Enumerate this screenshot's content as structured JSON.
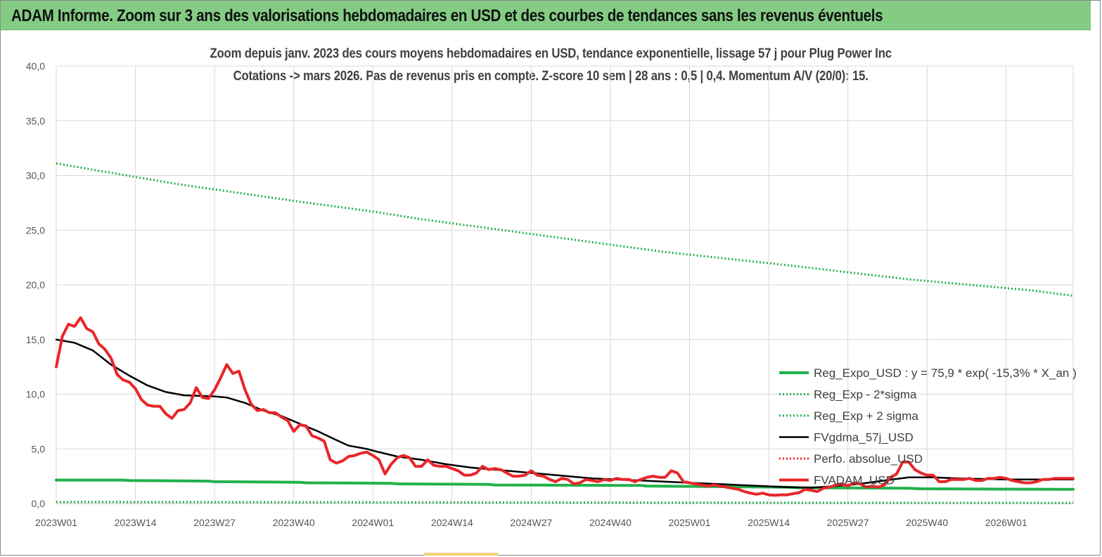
{
  "header": {
    "title": "ADAM Informe. Zoom sur 3 ans des valorisations hebdomadaires en USD et des courbes de tendances sans les revenus éventuels"
  },
  "colors": {
    "header_bg": "#84cc84",
    "reg_expo": "#22b14c",
    "reg_band": "#22b14c",
    "fvgdma": "#000000",
    "perfo": "#e8262a",
    "fvadam": "#e8262a",
    "grid": "#d9d9d9"
  },
  "chart_data": {
    "type": "line",
    "title": "Zoom depuis janv. 2023 des cours moyens hebdomadaires en USD, tendance exponentielle, lissage 57 j pour Plug Power Inc",
    "subtitle": "Cotations -> mars 2026. Pas de revenus pris en compte. Z-score 10 sem | 28 ans : 0,5 | 0,4. Momentum A/V (20/0): 15.",
    "xlabel": "",
    "ylabel": "",
    "ylim": [
      0,
      40
    ],
    "y_ticks": [
      "0,0",
      "5,0",
      "10,0",
      "15,0",
      "20,0",
      "25,0",
      "30,0",
      "35,0",
      "40,0"
    ],
    "x_ticks": [
      "2023W01",
      "2023W14",
      "2023W27",
      "2023W40",
      "2024W01",
      "2024W14",
      "2024W27",
      "2024W40",
      "2025W01",
      "2025W14",
      "2025W27",
      "2025W40",
      "2026W01"
    ],
    "x_range_weeks": [
      0,
      167
    ],
    "legend_position": "right",
    "series": [
      {
        "name": "Reg_Expo_USD : y = 75,9 * exp( -15,3% *  X_an )",
        "style": "solid-thick",
        "color": "#22b14c",
        "points": [
          [
            0,
            2.15
          ],
          [
            11,
            2.15
          ],
          [
            12,
            2.1
          ],
          [
            25,
            2.05
          ],
          [
            26,
            2.0
          ],
          [
            40,
            1.95
          ],
          [
            41,
            1.9
          ],
          [
            55,
            1.85
          ],
          [
            56,
            1.8
          ],
          [
            71,
            1.75
          ],
          [
            72,
            1.7
          ],
          [
            96,
            1.65
          ],
          [
            97,
            1.6
          ],
          [
            120,
            1.5
          ],
          [
            122,
            1.45
          ],
          [
            140,
            1.4
          ],
          [
            142,
            1.35
          ],
          [
            165,
            1.3
          ],
          [
            167,
            1.3
          ]
        ]
      },
      {
        "name": "Reg_Exp - 2*sigma",
        "style": "dotted",
        "color": "#22b14c",
        "points": [
          [
            0,
            0.15
          ],
          [
            40,
            0.12
          ],
          [
            80,
            0.1
          ],
          [
            120,
            0.08
          ],
          [
            167,
            0.06
          ]
        ]
      },
      {
        "name": "Reg_Exp + 2 sigma",
        "style": "dotted",
        "color": "#22b14c",
        "points": [
          [
            0,
            31.1
          ],
          [
            20,
            29.2
          ],
          [
            40,
            27.6
          ],
          [
            52,
            26.7
          ],
          [
            60,
            26.0
          ],
          [
            80,
            24.5
          ],
          [
            100,
            23.0
          ],
          [
            120,
            21.8
          ],
          [
            140,
            20.5
          ],
          [
            160,
            19.5
          ],
          [
            167,
            19.0
          ]
        ]
      },
      {
        "name": "FVgdma_57j_USD",
        "style": "solid",
        "color": "#000000",
        "points": [
          [
            0,
            15.0
          ],
          [
            3,
            14.7
          ],
          [
            6,
            14.0
          ],
          [
            9,
            12.7
          ],
          [
            12,
            11.7
          ],
          [
            15,
            10.8
          ],
          [
            18,
            10.2
          ],
          [
            21,
            9.9
          ],
          [
            23,
            9.85
          ],
          [
            26,
            9.8
          ],
          [
            28,
            9.7
          ],
          [
            31,
            9.2
          ],
          [
            34,
            8.5
          ],
          [
            37,
            8.0
          ],
          [
            40,
            7.3
          ],
          [
            43,
            6.6
          ],
          [
            46,
            5.8
          ],
          [
            48,
            5.3
          ],
          [
            51,
            5.0
          ],
          [
            53,
            4.7
          ],
          [
            56,
            4.3
          ],
          [
            60,
            4.0
          ],
          [
            64,
            3.6
          ],
          [
            68,
            3.3
          ],
          [
            72,
            3.1
          ],
          [
            76,
            2.9
          ],
          [
            80,
            2.7
          ],
          [
            84,
            2.5
          ],
          [
            88,
            2.3
          ],
          [
            92,
            2.2
          ],
          [
            96,
            2.1
          ],
          [
            100,
            2.0
          ],
          [
            104,
            1.9
          ],
          [
            108,
            1.8
          ],
          [
            112,
            1.7
          ],
          [
            116,
            1.6
          ],
          [
            120,
            1.5
          ],
          [
            124,
            1.45
          ],
          [
            128,
            1.6
          ],
          [
            132,
            1.8
          ],
          [
            136,
            2.1
          ],
          [
            140,
            2.4
          ],
          [
            144,
            2.4
          ],
          [
            148,
            2.3
          ],
          [
            152,
            2.25
          ],
          [
            156,
            2.2
          ],
          [
            160,
            2.2
          ],
          [
            164,
            2.2
          ],
          [
            167,
            2.2
          ]
        ]
      },
      {
        "name": "Perfo. absolue_USD",
        "style": "dotted",
        "color": "#e8262a",
        "points": []
      },
      {
        "name": "FVADAM_USD",
        "style": "solid-thick",
        "color": "#e8262a",
        "points": [
          [
            0,
            12.5
          ],
          [
            1,
            15.3
          ],
          [
            2,
            16.4
          ],
          [
            3,
            16.2
          ],
          [
            4,
            17.0
          ],
          [
            5,
            16.0
          ],
          [
            6,
            15.7
          ],
          [
            7,
            14.6
          ],
          [
            8,
            14.1
          ],
          [
            9,
            13.3
          ],
          [
            10,
            11.8
          ],
          [
            11,
            11.3
          ],
          [
            12,
            11.1
          ],
          [
            13,
            10.5
          ],
          [
            14,
            9.5
          ],
          [
            15,
            9.0
          ],
          [
            16,
            8.9
          ],
          [
            17,
            8.9
          ],
          [
            18,
            8.2
          ],
          [
            19,
            7.8
          ],
          [
            20,
            8.5
          ],
          [
            21,
            8.6
          ],
          [
            22,
            9.2
          ],
          [
            23,
            10.6
          ],
          [
            24,
            9.7
          ],
          [
            25,
            9.6
          ],
          [
            26,
            10.4
          ],
          [
            27,
            11.5
          ],
          [
            28,
            12.7
          ],
          [
            29,
            11.9
          ],
          [
            30,
            12.1
          ],
          [
            31,
            10.4
          ],
          [
            32,
            9.1
          ],
          [
            33,
            8.5
          ],
          [
            34,
            8.6
          ],
          [
            35,
            8.3
          ],
          [
            36,
            8.3
          ],
          [
            37,
            7.9
          ],
          [
            38,
            7.6
          ],
          [
            39,
            6.6
          ],
          [
            40,
            7.2
          ],
          [
            41,
            7.1
          ],
          [
            42,
            6.2
          ],
          [
            43,
            6.0
          ],
          [
            44,
            5.7
          ],
          [
            45,
            4.0
          ],
          [
            46,
            3.7
          ],
          [
            47,
            3.9
          ],
          [
            48,
            4.3
          ],
          [
            49,
            4.4
          ],
          [
            50,
            4.6
          ],
          [
            51,
            4.7
          ],
          [
            52,
            4.4
          ],
          [
            53,
            4.0
          ],
          [
            54,
            2.7
          ],
          [
            55,
            3.6
          ],
          [
            56,
            4.2
          ],
          [
            57,
            4.4
          ],
          [
            58,
            4.2
          ],
          [
            59,
            3.4
          ],
          [
            60,
            3.4
          ],
          [
            61,
            4.0
          ],
          [
            62,
            3.5
          ],
          [
            63,
            3.4
          ],
          [
            64,
            3.4
          ],
          [
            65,
            3.2
          ],
          [
            66,
            3.0
          ],
          [
            67,
            2.6
          ],
          [
            68,
            2.6
          ],
          [
            69,
            2.8
          ],
          [
            70,
            3.4
          ],
          [
            71,
            3.1
          ],
          [
            72,
            3.2
          ],
          [
            73,
            3.1
          ],
          [
            74,
            2.8
          ],
          [
            75,
            2.5
          ],
          [
            76,
            2.5
          ],
          [
            77,
            2.6
          ],
          [
            78,
            3.0
          ],
          [
            79,
            2.6
          ],
          [
            80,
            2.5
          ],
          [
            81,
            2.2
          ],
          [
            82,
            2.0
          ],
          [
            83,
            2.3
          ],
          [
            84,
            2.2
          ],
          [
            85,
            1.8
          ],
          [
            86,
            1.9
          ],
          [
            87,
            2.2
          ],
          [
            88,
            2.1
          ],
          [
            89,
            2.0
          ],
          [
            90,
            2.2
          ],
          [
            91,
            2.1
          ],
          [
            92,
            2.3
          ],
          [
            93,
            2.2
          ],
          [
            94,
            2.2
          ],
          [
            95,
            2.0
          ],
          [
            96,
            2.2
          ],
          [
            97,
            2.4
          ],
          [
            98,
            2.5
          ],
          [
            99,
            2.4
          ],
          [
            100,
            2.4
          ],
          [
            101,
            3.0
          ],
          [
            102,
            2.8
          ],
          [
            103,
            2.0
          ],
          [
            104,
            1.9
          ],
          [
            105,
            1.8
          ],
          [
            106,
            1.7
          ],
          [
            107,
            1.6
          ],
          [
            108,
            1.7
          ],
          [
            109,
            1.6
          ],
          [
            110,
            1.5
          ],
          [
            111,
            1.4
          ],
          [
            112,
            1.3
          ],
          [
            113,
            1.1
          ],
          [
            114,
            0.95
          ],
          [
            115,
            0.85
          ],
          [
            116,
            0.95
          ],
          [
            117,
            0.8
          ],
          [
            118,
            0.75
          ],
          [
            119,
            0.8
          ],
          [
            120,
            0.8
          ],
          [
            121,
            0.9
          ],
          [
            122,
            1.0
          ],
          [
            123,
            1.3
          ],
          [
            124,
            1.2
          ],
          [
            125,
            1.1
          ],
          [
            126,
            1.4
          ],
          [
            127,
            1.5
          ],
          [
            128,
            1.7
          ],
          [
            129,
            1.8
          ],
          [
            130,
            1.6
          ],
          [
            131,
            1.9
          ],
          [
            132,
            1.8
          ],
          [
            133,
            1.5
          ],
          [
            134,
            1.6
          ],
          [
            135,
            1.5
          ],
          [
            136,
            1.7
          ],
          [
            137,
            2.4
          ],
          [
            138,
            2.7
          ],
          [
            139,
            3.8
          ],
          [
            140,
            3.8
          ],
          [
            141,
            3.1
          ],
          [
            142,
            2.8
          ],
          [
            143,
            2.6
          ],
          [
            144,
            2.6
          ],
          [
            145,
            2.0
          ],
          [
            146,
            2.0
          ],
          [
            147,
            2.2
          ],
          [
            148,
            2.2
          ],
          [
            149,
            2.2
          ],
          [
            150,
            2.3
          ],
          [
            151,
            2.1
          ],
          [
            152,
            2.1
          ],
          [
            153,
            2.3
          ],
          [
            154,
            2.3
          ],
          [
            155,
            2.4
          ],
          [
            156,
            2.3
          ],
          [
            157,
            2.1
          ],
          [
            158,
            2.0
          ],
          [
            159,
            1.9
          ],
          [
            160,
            1.9
          ],
          [
            161,
            2.0
          ],
          [
            162,
            2.2
          ],
          [
            163,
            2.2
          ],
          [
            164,
            2.3
          ],
          [
            165,
            2.3
          ],
          [
            166,
            2.3
          ],
          [
            167,
            2.3
          ]
        ]
      }
    ]
  }
}
